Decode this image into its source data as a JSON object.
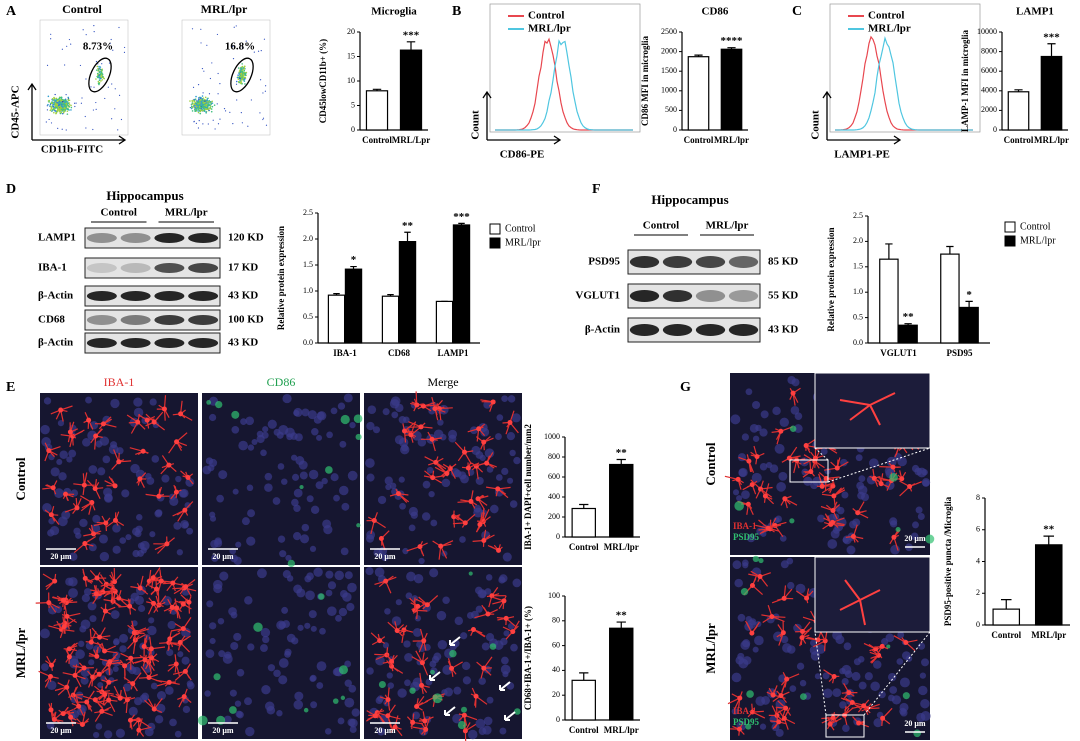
{
  "panel_letters": [
    "A",
    "B",
    "C",
    "D",
    "E",
    "F",
    "G"
  ],
  "flow": {
    "titles": [
      "Control",
      "MRL/lpr"
    ],
    "gates": [
      "8.73%",
      "16.8%"
    ],
    "y_label": "CD45-APC",
    "x_label": "CD11b-FITC"
  },
  "histograms": [
    {
      "legend": [
        "Control",
        "MRL/lpr"
      ],
      "y_label": "Count",
      "x_label": "CD86-PE"
    },
    {
      "legend": [
        "Control",
        "MRL/lpr"
      ],
      "y_label": "Count",
      "x_label": "LAMP1-PE"
    }
  ],
  "blots": [
    {
      "title": "Hippocampus",
      "groups": [
        "Control",
        "MRL/lpr"
      ],
      "rows": [
        {
          "label": "LAMP1",
          "size": "120 KD"
        },
        {
          "label": "IBA-1",
          "size": "17 KD"
        },
        {
          "label": "β-Actin",
          "size": "43 KD"
        },
        {
          "label": "CD68",
          "size": "100 KD"
        },
        {
          "label": "β-Actin",
          "size": "43 KD"
        }
      ]
    },
    {
      "title": "Hippocampus",
      "groups": [
        "Control",
        "MRL/lpr"
      ],
      "rows": [
        {
          "label": "PSD95",
          "size": "85 KD"
        },
        {
          "label": "VGLUT1",
          "size": "55 KD"
        },
        {
          "label": "β-Actin",
          "size": "43 KD"
        }
      ]
    }
  ],
  "images": {
    "channels": [
      "IBA-1",
      "CD86",
      "Merge"
    ],
    "rows": [
      "Control",
      "MRL/lpr"
    ],
    "scale": "20 μm"
  },
  "panel_g": {
    "rows": [
      "Control",
      "MRL/lpr"
    ],
    "stains": [
      "IBA-1",
      "PSD95"
    ],
    "scale": "20 μm"
  },
  "chart_data": [
    {
      "type": "bar",
      "title": "Microglia",
      "y_label": "CD45lowCD11b+ (%)",
      "categories": [
        "Control",
        "MRL/Lpr"
      ],
      "values": [
        8,
        16.3
      ],
      "errors": [
        0.3,
        1.7
      ],
      "colors": [
        "#ffffff",
        "#000000"
      ],
      "annotations": [
        null,
        "***"
      ],
      "ylim": [
        0,
        20
      ],
      "yticks": [
        0,
        5,
        10,
        15,
        20
      ]
    },
    {
      "type": "bar",
      "title": "CD86",
      "y_label": "CD86 MFI in microglia",
      "categories": [
        "Control",
        "MRL/lpr"
      ],
      "values": [
        1870,
        2060
      ],
      "errors": [
        40,
        40
      ],
      "colors": [
        "#ffffff",
        "#000000"
      ],
      "annotations": [
        null,
        "****"
      ],
      "ylim": [
        0,
        2500
      ],
      "yticks": [
        0,
        500,
        1000,
        1500,
        2000,
        2500
      ]
    },
    {
      "type": "bar",
      "title": "LAMP1",
      "y_label": "LAMP-1 MFI in microglia",
      "categories": [
        "Control",
        "MRL/lpr"
      ],
      "values": [
        3900,
        7500
      ],
      "errors": [
        200,
        1300
      ],
      "colors": [
        "#ffffff",
        "#000000"
      ],
      "annotations": [
        null,
        "***"
      ],
      "ylim": [
        0,
        10000
      ],
      "yticks": [
        0,
        2000,
        4000,
        6000,
        8000,
        10000
      ]
    },
    {
      "type": "bar",
      "y_label": "Relative protein expression",
      "categories": [
        "IBA-1",
        "CD68",
        "LAMP1"
      ],
      "series": [
        {
          "name": "Control",
          "color": "#ffffff",
          "values": [
            0.92,
            0.9,
            0.8
          ],
          "errors": [
            0.03,
            0.03,
            0
          ]
        },
        {
          "name": "MRL/lpr",
          "color": "#000000",
          "values": [
            1.42,
            1.95,
            2.27
          ],
          "errors": [
            0.05,
            0.18,
            0.03
          ],
          "annotations": [
            "*",
            "**",
            "***"
          ]
        }
      ],
      "ylim": [
        0,
        2.5
      ],
      "yticks": [
        {
          "value": 0,
          "label": "0.0"
        },
        {
          "value": 0.5,
          "label": "0.5"
        },
        {
          "value": 1,
          "label": "1.0"
        },
        {
          "value": 1.5,
          "label": "1.5"
        },
        {
          "value": 2,
          "label": "2.0"
        },
        {
          "value": 2.5,
          "label": "2.5"
        }
      ]
    },
    {
      "type": "bar",
      "y_label": "Relative protein expression",
      "categories": [
        "VGLUT1",
        "PSD95"
      ],
      "series": [
        {
          "name": "Control",
          "color": "#ffffff",
          "values": [
            1.65,
            1.75
          ],
          "errors": [
            0.3,
            0.15
          ]
        },
        {
          "name": "MRL/lpr",
          "color": "#000000",
          "values": [
            0.35,
            0.7
          ],
          "errors": [
            0.03,
            0.12
          ],
          "annotations": [
            "**",
            "*"
          ]
        }
      ],
      "ylim": [
        0,
        2.5
      ],
      "yticks": [
        {
          "value": 0,
          "label": "0.0"
        },
        {
          "value": 0.5,
          "label": "0.5"
        },
        {
          "value": 1,
          "label": "1.0"
        },
        {
          "value": 1.5,
          "label": "1.5"
        },
        {
          "value": 2,
          "label": "2.0"
        },
        {
          "value": 2.5,
          "label": "2.5"
        }
      ]
    },
    {
      "type": "bar",
      "y_label": "IBA-1+ DAPI+cell number/mm2",
      "categories": [
        "Control",
        "MRL/lpr"
      ],
      "values": [
        285,
        725
      ],
      "errors": [
        40,
        50
      ],
      "colors": [
        "#ffffff",
        "#000000"
      ],
      "annotations": [
        null,
        "**"
      ],
      "ylim": [
        0,
        1000
      ],
      "yticks": [
        0,
        200,
        400,
        600,
        800,
        1000
      ]
    },
    {
      "type": "bar",
      "y_label": "CD68+IBA-1+/IBA-1+ (%)",
      "categories": [
        "Control",
        "MRL/lpr"
      ],
      "values": [
        32,
        74
      ],
      "errors": [
        6,
        5
      ],
      "colors": [
        "#ffffff",
        "#000000"
      ],
      "annotations": [
        null,
        "**"
      ],
      "ylim": [
        0,
        100
      ],
      "yticks": [
        0,
        20,
        40,
        60,
        80,
        100
      ]
    },
    {
      "type": "bar",
      "y_label": "PSD95-positive puncta /Microglia",
      "categories": [
        "Control",
        "MRL/lpr"
      ],
      "values": [
        1.0,
        5.05
      ],
      "errors": [
        0.6,
        0.55
      ],
      "colors": [
        "#ffffff",
        "#000000"
      ],
      "annotations": [
        null,
        "**"
      ],
      "ylim": [
        0,
        8
      ],
      "yticks": [
        0,
        2,
        4,
        6,
        8
      ]
    }
  ]
}
